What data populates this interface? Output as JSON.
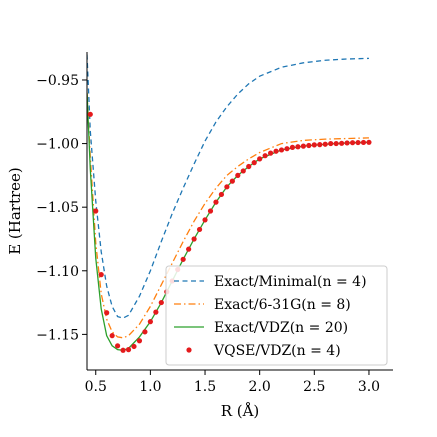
{
  "chart_data": {
    "type": "line",
    "xlabel": "R (Å)",
    "ylabel": "E (Hartree)",
    "xlim": [
      0.42,
      3.22
    ],
    "ylim": [
      -1.178,
      -0.928
    ],
    "x_ticks": [
      0.5,
      1.0,
      1.5,
      2.0,
      2.5,
      3.0
    ],
    "x_tick_labels": [
      "0.5",
      "1.0",
      "1.5",
      "2.0",
      "2.5",
      "3.0"
    ],
    "y_ticks": [
      -1.15,
      -1.1,
      -1.05,
      -1.0,
      -0.95
    ],
    "y_tick_labels": [
      "−1.15",
      "−1.10",
      "−1.05",
      "−1.00",
      "−0.95"
    ],
    "legend_position": "lower-right",
    "series": [
      {
        "name": "Exact/Minimal(n = 4)",
        "style": "dashed",
        "color": "#1f77b4",
        "x": [
          0.42,
          0.45,
          0.5,
          0.55,
          0.6,
          0.65,
          0.7,
          0.75,
          0.8,
          0.9,
          1.0,
          1.1,
          1.2,
          1.3,
          1.4,
          1.5,
          1.6,
          1.7,
          1.8,
          1.9,
          2.0,
          2.2,
          2.4,
          2.6,
          2.8,
          3.0
        ],
        "y": [
          -0.93,
          -0.99,
          -1.045,
          -1.085,
          -1.112,
          -1.128,
          -1.136,
          -1.1372,
          -1.135,
          -1.12,
          -1.1,
          -1.077,
          -1.055,
          -1.035,
          -1.016,
          -0.998,
          -0.983,
          -0.971,
          -0.961,
          -0.953,
          -0.947,
          -0.94,
          -0.9365,
          -0.9345,
          -0.9335,
          -0.933
        ]
      },
      {
        "name": "Exact/6-31G(n = 8)",
        "style": "dashdot",
        "color": "#ff7f0e",
        "x": [
          0.42,
          0.45,
          0.5,
          0.55,
          0.6,
          0.65,
          0.7,
          0.75,
          0.8,
          0.9,
          1.0,
          1.1,
          1.2,
          1.3,
          1.4,
          1.5,
          1.6,
          1.7,
          1.8,
          1.9,
          2.0,
          2.2,
          2.4,
          2.6,
          2.8,
          3.0
        ],
        "y": [
          -0.96,
          -1.01,
          -1.078,
          -1.118,
          -1.138,
          -1.148,
          -1.152,
          -1.1527,
          -1.151,
          -1.142,
          -1.128,
          -1.111,
          -1.094,
          -1.077,
          -1.061,
          -1.047,
          -1.035,
          -1.025,
          -1.018,
          -1.012,
          -1.007,
          -1.0,
          -0.9975,
          -0.9965,
          -0.996,
          -0.9955
        ]
      },
      {
        "name": "Exact/VDZ(n = 20)",
        "style": "solid",
        "color": "#2ca02c",
        "x": [
          0.42,
          0.45,
          0.5,
          0.55,
          0.6,
          0.65,
          0.7,
          0.75,
          0.8,
          0.9,
          1.0,
          1.1,
          1.2,
          1.3,
          1.4,
          1.5,
          1.6,
          1.7,
          1.8,
          1.9,
          2.0,
          2.2,
          2.4,
          2.6,
          2.8,
          3.0
        ],
        "y": [
          -0.96,
          -1.02,
          -1.09,
          -1.13,
          -1.151,
          -1.159,
          -1.162,
          -1.1625,
          -1.161,
          -1.152,
          -1.14,
          -1.125,
          -1.108,
          -1.091,
          -1.075,
          -1.06,
          -1.046,
          -1.034,
          -1.025,
          -1.018,
          -1.012,
          -1.005,
          -1.002,
          -1.0005,
          -0.9995,
          -0.999
        ]
      },
      {
        "name": "VQSE/VDZ(n = 4)",
        "style": "markers",
        "color": "#e41a1c",
        "x": [
          0.45,
          0.5,
          0.55,
          0.6,
          0.65,
          0.7,
          0.75,
          0.8,
          0.85,
          0.9,
          0.95,
          1.0,
          1.05,
          1.1,
          1.15,
          1.2,
          1.25,
          1.3,
          1.35,
          1.4,
          1.45,
          1.5,
          1.55,
          1.6,
          1.65,
          1.7,
          1.75,
          1.8,
          1.85,
          1.9,
          1.95,
          2.0,
          2.05,
          2.1,
          2.15,
          2.2,
          2.25,
          2.3,
          2.35,
          2.4,
          2.45,
          2.5,
          2.55,
          2.6,
          2.65,
          2.7,
          2.75,
          2.8,
          2.85,
          2.9,
          2.95,
          3.0
        ],
        "y": [
          -0.977,
          -1.053,
          -1.103,
          -1.133,
          -1.151,
          -1.159,
          -1.1625,
          -1.162,
          -1.1595,
          -1.155,
          -1.148,
          -1.14,
          -1.1325,
          -1.125,
          -1.1165,
          -1.108,
          -1.099,
          -1.091,
          -1.083,
          -1.075,
          -1.0675,
          -1.06,
          -1.053,
          -1.046,
          -1.04,
          -1.034,
          -1.0295,
          -1.025,
          -1.0215,
          -1.018,
          -1.015,
          -1.012,
          -1.0095,
          -1.0075,
          -1.006,
          -1.005,
          -1.004,
          -1.003,
          -1.0025,
          -1.002,
          -1.0015,
          -1.001,
          -1.0008,
          -1.0005,
          -1.0,
          -1.0,
          -0.9998,
          -0.9995,
          -0.9993,
          -0.9992,
          -0.9991,
          -0.999
        ]
      }
    ]
  }
}
